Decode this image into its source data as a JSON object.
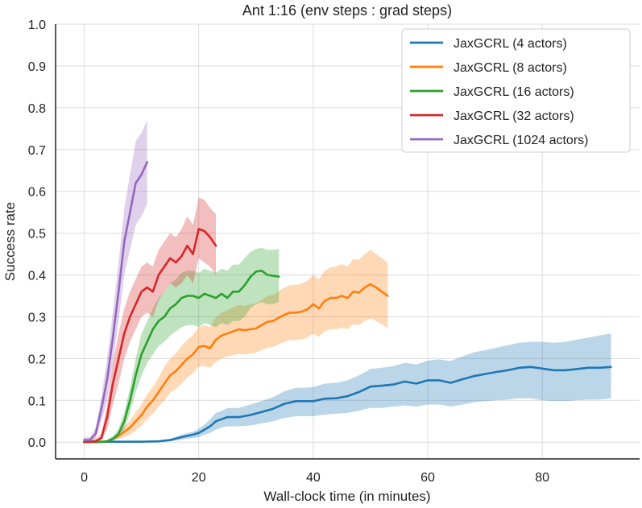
{
  "chart_data": {
    "type": "line",
    "title": "Ant 1:16 (env steps : grad steps)",
    "xlabel": "Wall-clock time (in minutes)",
    "ylabel": "Success rate",
    "xlim": [
      -5,
      97
    ],
    "ylim": [
      -0.04,
      1.0
    ],
    "xticks": [
      0,
      20,
      40,
      60,
      80
    ],
    "yticks": [
      0.0,
      0.1,
      0.2,
      0.3,
      0.4,
      0.5,
      0.6,
      0.7,
      0.8,
      0.9,
      1.0
    ],
    "xtick_labels": [
      "0",
      "20",
      "40",
      "60",
      "80"
    ],
    "ytick_labels": [
      "0.0",
      "0.1",
      "0.2",
      "0.3",
      "0.4",
      "0.5",
      "0.6",
      "0.7",
      "0.8",
      "0.9",
      "1.0"
    ],
    "grid": true,
    "legend_position": "top-right",
    "series": [
      {
        "name": "JaxGCRL (4 actors)",
        "color": "#1f77b4",
        "x": [
          0,
          5,
          10,
          13,
          15,
          17,
          19,
          20,
          21,
          22,
          23,
          24,
          25,
          27,
          29,
          31,
          33,
          35,
          37,
          38,
          40,
          42,
          44,
          46,
          48,
          50,
          52,
          54,
          56,
          58,
          60,
          62,
          64,
          66,
          68,
          70,
          72,
          74,
          76,
          78,
          80,
          82,
          84,
          86,
          88,
          90,
          92
        ],
        "y": [
          0.0,
          0.001,
          0.001,
          0.002,
          0.005,
          0.012,
          0.018,
          0.022,
          0.03,
          0.038,
          0.05,
          0.055,
          0.06,
          0.06,
          0.065,
          0.072,
          0.08,
          0.092,
          0.098,
          0.098,
          0.098,
          0.104,
          0.105,
          0.11,
          0.12,
          0.133,
          0.135,
          0.138,
          0.145,
          0.14,
          0.148,
          0.148,
          0.142,
          0.15,
          0.158,
          0.163,
          0.168,
          0.172,
          0.178,
          0.18,
          0.176,
          0.172,
          0.172,
          0.175,
          0.178,
          0.178,
          0.18
        ],
        "lower": [
          0.0,
          0.0,
          0.0,
          0.0,
          0.002,
          0.006,
          0.01,
          0.012,
          0.018,
          0.022,
          0.03,
          0.035,
          0.038,
          0.038,
          0.04,
          0.045,
          0.05,
          0.058,
          0.062,
          0.062,
          0.062,
          0.066,
          0.068,
          0.07,
          0.075,
          0.082,
          0.082,
          0.085,
          0.088,
          0.085,
          0.09,
          0.09,
          0.085,
          0.09,
          0.095,
          0.098,
          0.1,
          0.102,
          0.105,
          0.105,
          0.1,
          0.098,
          0.098,
          0.1,
          0.102,
          0.102,
          0.105
        ],
        "upper": [
          0.002,
          0.003,
          0.003,
          0.004,
          0.008,
          0.018,
          0.025,
          0.032,
          0.042,
          0.055,
          0.07,
          0.075,
          0.082,
          0.082,
          0.09,
          0.098,
          0.108,
          0.122,
          0.13,
          0.13,
          0.132,
          0.14,
          0.142,
          0.148,
          0.16,
          0.175,
          0.178,
          0.182,
          0.19,
          0.186,
          0.195,
          0.198,
          0.194,
          0.205,
          0.215,
          0.22,
          0.226,
          0.232,
          0.238,
          0.24,
          0.24,
          0.238,
          0.24,
          0.245,
          0.25,
          0.255,
          0.26
        ]
      },
      {
        "name": "JaxGCRL (8 actors)",
        "color": "#ff7f0e",
        "x": [
          0,
          2,
          4,
          5,
          6,
          7,
          8,
          9,
          10,
          11,
          12,
          13,
          14,
          15,
          16,
          17,
          18,
          19,
          20,
          21,
          22,
          23,
          24,
          25,
          26,
          27,
          28,
          29,
          30,
          31,
          32,
          33,
          34,
          35,
          36,
          37,
          38,
          39,
          40,
          41,
          42,
          43,
          44,
          45,
          46,
          47,
          48,
          49,
          50,
          51,
          52,
          53
        ],
        "y": [
          0.0,
          0.0,
          0.002,
          0.008,
          0.015,
          0.025,
          0.035,
          0.05,
          0.065,
          0.085,
          0.1,
          0.12,
          0.14,
          0.16,
          0.17,
          0.185,
          0.2,
          0.21,
          0.228,
          0.23,
          0.225,
          0.245,
          0.255,
          0.26,
          0.265,
          0.27,
          0.268,
          0.27,
          0.272,
          0.28,
          0.288,
          0.29,
          0.298,
          0.305,
          0.31,
          0.31,
          0.312,
          0.318,
          0.33,
          0.32,
          0.338,
          0.345,
          0.345,
          0.35,
          0.345,
          0.36,
          0.358,
          0.37,
          0.378,
          0.37,
          0.36,
          0.35
        ],
        "lower": [
          0.0,
          0.0,
          0.0,
          0.004,
          0.008,
          0.012,
          0.018,
          0.028,
          0.04,
          0.055,
          0.068,
          0.085,
          0.1,
          0.118,
          0.128,
          0.14,
          0.155,
          0.165,
          0.18,
          0.182,
          0.178,
          0.192,
          0.2,
          0.205,
          0.208,
          0.212,
          0.21,
          0.212,
          0.214,
          0.22,
          0.226,
          0.228,
          0.234,
          0.24,
          0.244,
          0.244,
          0.246,
          0.25,
          0.26,
          0.252,
          0.265,
          0.27,
          0.27,
          0.274,
          0.27,
          0.282,
          0.28,
          0.29,
          0.296,
          0.29,
          0.282,
          0.272
        ],
        "upper": [
          0.002,
          0.002,
          0.005,
          0.012,
          0.022,
          0.038,
          0.052,
          0.072,
          0.09,
          0.115,
          0.132,
          0.155,
          0.18,
          0.2,
          0.212,
          0.23,
          0.245,
          0.256,
          0.275,
          0.28,
          0.275,
          0.298,
          0.31,
          0.316,
          0.322,
          0.328,
          0.326,
          0.33,
          0.332,
          0.34,
          0.35,
          0.352,
          0.362,
          0.37,
          0.376,
          0.376,
          0.38,
          0.386,
          0.4,
          0.39,
          0.41,
          0.418,
          0.42,
          0.426,
          0.42,
          0.438,
          0.436,
          0.45,
          0.46,
          0.45,
          0.44,
          0.43
        ]
      },
      {
        "name": "JaxGCRL (16 actors)",
        "color": "#2ca02c",
        "x": [
          0,
          2,
          4,
          5,
          6,
          7,
          8,
          9,
          10,
          11,
          12,
          13,
          14,
          15,
          16,
          17,
          18,
          19,
          20,
          21,
          22,
          23,
          24,
          25,
          26,
          27,
          28,
          29,
          30,
          31,
          32,
          33,
          34
        ],
        "y": [
          0.0,
          0.0,
          0.002,
          0.008,
          0.02,
          0.05,
          0.1,
          0.16,
          0.21,
          0.24,
          0.27,
          0.29,
          0.3,
          0.32,
          0.33,
          0.345,
          0.35,
          0.35,
          0.345,
          0.355,
          0.35,
          0.345,
          0.355,
          0.345,
          0.36,
          0.36,
          0.375,
          0.395,
          0.408,
          0.41,
          0.4,
          0.398,
          0.396
        ],
        "lower": [
          0.0,
          0.0,
          0.0,
          0.003,
          0.01,
          0.03,
          0.07,
          0.12,
          0.16,
          0.19,
          0.21,
          0.23,
          0.24,
          0.255,
          0.265,
          0.275,
          0.28,
          0.28,
          0.275,
          0.285,
          0.28,
          0.275,
          0.285,
          0.28,
          0.29,
          0.29,
          0.3,
          0.32,
          0.33,
          0.335,
          0.33,
          0.33,
          0.335
        ],
        "upper": [
          0.002,
          0.002,
          0.005,
          0.014,
          0.032,
          0.072,
          0.13,
          0.2,
          0.26,
          0.29,
          0.32,
          0.345,
          0.36,
          0.38,
          0.39,
          0.405,
          0.41,
          0.41,
          0.405,
          0.415,
          0.41,
          0.405,
          0.415,
          0.41,
          0.425,
          0.425,
          0.44,
          0.455,
          0.462,
          0.465,
          0.46,
          0.46,
          0.462
        ]
      },
      {
        "name": "JaxGCRL (32 actors)",
        "color": "#d62728",
        "x": [
          0,
          1,
          2,
          3,
          4,
          5,
          6,
          7,
          8,
          9,
          10,
          11,
          12,
          13,
          14,
          15,
          16,
          17,
          18,
          19,
          20,
          21,
          22,
          23
        ],
        "y": [
          0.0,
          0.001,
          0.002,
          0.01,
          0.06,
          0.14,
          0.2,
          0.26,
          0.3,
          0.33,
          0.36,
          0.37,
          0.36,
          0.4,
          0.42,
          0.44,
          0.43,
          0.445,
          0.47,
          0.45,
          0.51,
          0.505,
          0.49,
          0.47
        ],
        "lower": [
          0.0,
          0.0,
          0.0,
          0.004,
          0.03,
          0.09,
          0.14,
          0.2,
          0.24,
          0.27,
          0.3,
          0.31,
          0.3,
          0.34,
          0.36,
          0.38,
          0.37,
          0.38,
          0.4,
          0.38,
          0.44,
          0.43,
          0.42,
          0.4
        ],
        "upper": [
          0.003,
          0.004,
          0.008,
          0.02,
          0.09,
          0.19,
          0.26,
          0.32,
          0.36,
          0.39,
          0.42,
          0.43,
          0.42,
          0.46,
          0.48,
          0.5,
          0.49,
          0.51,
          0.54,
          0.52,
          0.585,
          0.58,
          0.56,
          0.545
        ]
      },
      {
        "name": "JaxGCRL (1024 actors)",
        "color": "#9467bd",
        "x": [
          0,
          1,
          2,
          3,
          4,
          5,
          6,
          7,
          8,
          9,
          10,
          11
        ],
        "y": [
          0.005,
          0.005,
          0.02,
          0.08,
          0.15,
          0.25,
          0.36,
          0.48,
          0.55,
          0.62,
          0.64,
          0.67
        ],
        "lower": [
          0.0,
          0.0,
          0.008,
          0.05,
          0.1,
          0.19,
          0.29,
          0.4,
          0.46,
          0.52,
          0.54,
          0.57
        ],
        "upper": [
          0.012,
          0.012,
          0.035,
          0.11,
          0.2,
          0.31,
          0.43,
          0.56,
          0.64,
          0.72,
          0.74,
          0.77
        ]
      }
    ]
  }
}
